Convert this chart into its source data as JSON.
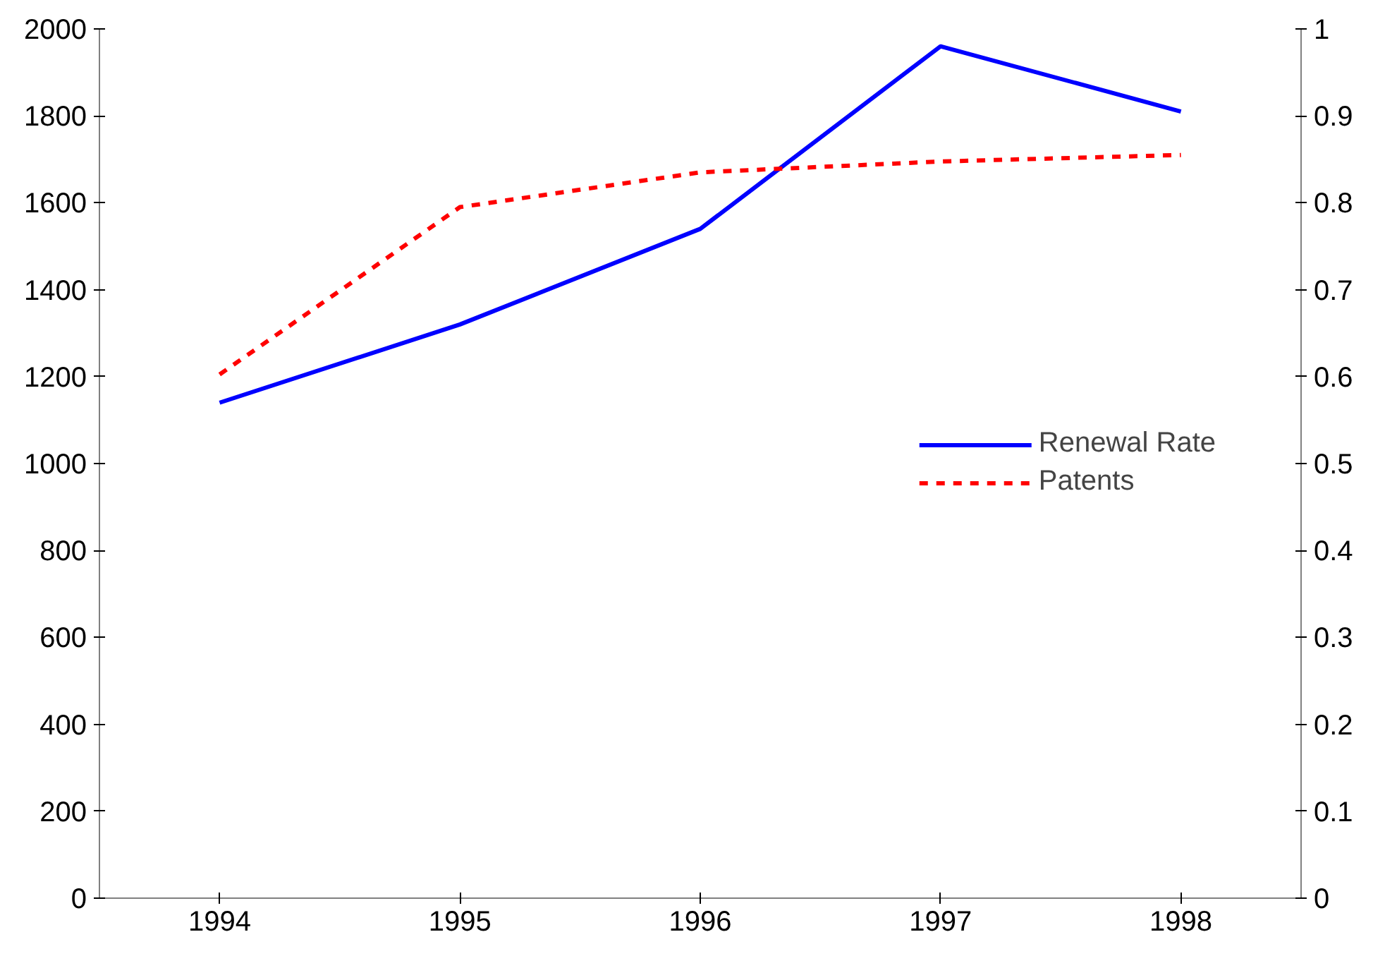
{
  "chart_data": {
    "type": "line",
    "categories": [
      "1994",
      "1995",
      "1996",
      "1997",
      "1998"
    ],
    "series": [
      {
        "name": "Renewal Rate",
        "color": "#0000ff",
        "axis": "y2",
        "line_style": "solid",
        "values": [
          0.57,
          0.66,
          0.77,
          0.98,
          0.905
        ]
      },
      {
        "name": "Patents",
        "color": "#ff0000",
        "axis": "y",
        "line_style": "dashed",
        "values": [
          1205,
          1590,
          1670,
          1695,
          1710
        ]
      }
    ],
    "ylim": [
      0,
      2000
    ],
    "yticks": [
      0,
      200,
      400,
      600,
      800,
      1000,
      1200,
      1400,
      1600,
      1800,
      2000
    ],
    "y2lim": [
      0,
      1
    ],
    "y2ticks": [
      0,
      0.1,
      0.2,
      0.3,
      0.4,
      0.5,
      0.6,
      0.7,
      0.8,
      0.9,
      1
    ],
    "grid": false,
    "legend": "right",
    "marker": "none"
  }
}
